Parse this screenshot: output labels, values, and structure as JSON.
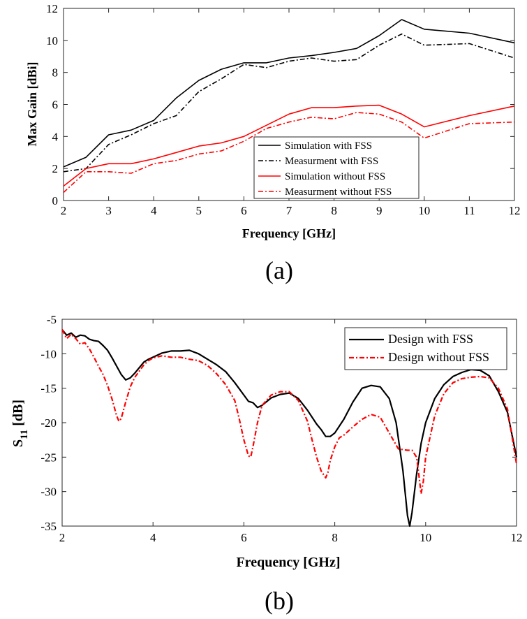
{
  "chart_data": [
    {
      "type": "line",
      "xlabel": "Frequency [GHz]",
      "ylabel": "Max Gain [dBi]",
      "caption": "(a)",
      "xlim": [
        2,
        12
      ],
      "ylim": [
        0,
        12
      ],
      "xticks": [
        "2",
        "3",
        "4",
        "5",
        "6",
        "7",
        "8",
        "9",
        "10",
        "11",
        "12"
      ],
      "yticks": [
        "0",
        "2",
        "4",
        "6",
        "8",
        "10",
        "12"
      ],
      "legend_position": "center-right",
      "series": [
        {
          "name": "Simulation with FSS",
          "color": "#000000",
          "dash": "solid",
          "x": [
            2,
            2.5,
            3,
            3.5,
            4,
            4.5,
            5,
            5.5,
            6,
            6.5,
            7,
            7.5,
            8,
            8.5,
            9,
            9.5,
            10,
            11,
            12
          ],
          "y": [
            2.1,
            2.7,
            4.1,
            4.4,
            5.0,
            6.4,
            7.5,
            8.2,
            8.6,
            8.6,
            8.9,
            9.05,
            9.25,
            9.5,
            10.3,
            11.3,
            10.7,
            10.45,
            9.85
          ]
        },
        {
          "name": "Measurment with FSS",
          "color": "#000000",
          "dash": "dashdot",
          "x": [
            2,
            2.5,
            3,
            3.5,
            4,
            4.5,
            5,
            5.5,
            6,
            6.5,
            7,
            7.5,
            8,
            8.5,
            9,
            9.5,
            10,
            11,
            12
          ],
          "y": [
            1.8,
            2.0,
            3.5,
            4.1,
            4.8,
            5.3,
            6.8,
            7.6,
            8.5,
            8.3,
            8.7,
            8.9,
            8.7,
            8.8,
            9.7,
            10.4,
            9.7,
            9.8,
            8.9
          ]
        },
        {
          "name": "Simulation without FSS",
          "color": "#ff0000",
          "dash": "solid",
          "x": [
            2,
            2.5,
            3,
            3.5,
            4,
            4.5,
            5,
            5.5,
            6,
            6.5,
            7,
            7.5,
            8,
            8.5,
            9,
            9.5,
            10,
            11,
            12
          ],
          "y": [
            0.9,
            2.0,
            2.3,
            2.3,
            2.6,
            3.0,
            3.4,
            3.6,
            4.0,
            4.7,
            5.4,
            5.8,
            5.8,
            5.9,
            5.95,
            5.4,
            4.6,
            5.3,
            5.9
          ]
        },
        {
          "name": "Measurment without FSS",
          "color": "#ff0000",
          "dash": "dashdot",
          "x": [
            2,
            2.5,
            3,
            3.5,
            4,
            4.5,
            5,
            5.5,
            6,
            6.5,
            7,
            7.5,
            8,
            8.5,
            9,
            9.5,
            10,
            11,
            12
          ],
          "y": [
            0.5,
            1.8,
            1.8,
            1.7,
            2.3,
            2.5,
            2.9,
            3.1,
            3.7,
            4.5,
            4.9,
            5.2,
            5.1,
            5.5,
            5.4,
            4.9,
            3.9,
            4.8,
            4.9
          ]
        }
      ]
    },
    {
      "type": "line",
      "xlabel": "Frequency [GHz]",
      "ylabel_main": "S",
      "ylabel_sub": "11",
      "ylabel_unit": " [dB]",
      "caption": "(b)",
      "xlim": [
        2,
        12
      ],
      "ylim": [
        -35,
        -5
      ],
      "xticks": [
        "2",
        "4",
        "6",
        "8",
        "10",
        "12"
      ],
      "yticks": [
        "-35",
        "-30",
        "-25",
        "-20",
        "-15",
        "-10",
        "-5"
      ],
      "legend_position": "top-right",
      "series": [
        {
          "name": "Design with FSS",
          "color": "#000000",
          "dash": "solid",
          "x": [
            2,
            2.1,
            2.2,
            2.3,
            2.4,
            2.5,
            2.6,
            2.7,
            2.8,
            2.9,
            3.0,
            3.1,
            3.2,
            3.3,
            3.4,
            3.5,
            3.6,
            3.7,
            3.8,
            3.9,
            4.0,
            4.2,
            4.4,
            4.6,
            4.8,
            5.0,
            5.2,
            5.4,
            5.6,
            5.8,
            6.0,
            6.1,
            6.2,
            6.3,
            6.4,
            6.6,
            6.8,
            7.0,
            7.2,
            7.4,
            7.6,
            7.7,
            7.8,
            7.9,
            8.0,
            8.2,
            8.4,
            8.6,
            8.8,
            9.0,
            9.2,
            9.35,
            9.5,
            9.6,
            9.65,
            9.7,
            9.8,
            9.9,
            10.0,
            10.2,
            10.4,
            10.6,
            10.8,
            11.0,
            11.2,
            11.4,
            11.6,
            11.8,
            12.0
          ],
          "y": [
            -6.5,
            -7.3,
            -7.0,
            -7.6,
            -7.3,
            -7.4,
            -7.9,
            -8.1,
            -8.2,
            -8.8,
            -9.5,
            -10.6,
            -11.8,
            -13.0,
            -13.8,
            -13.5,
            -12.8,
            -12.0,
            -11.2,
            -10.8,
            -10.5,
            -9.9,
            -9.6,
            -9.6,
            -9.5,
            -10.0,
            -10.8,
            -11.6,
            -12.6,
            -14.2,
            -16.0,
            -16.9,
            -17.1,
            -17.8,
            -17.5,
            -16.4,
            -15.9,
            -15.7,
            -16.5,
            -18.2,
            -20.2,
            -21.0,
            -22.0,
            -22.0,
            -21.5,
            -19.5,
            -17.0,
            -15.0,
            -14.6,
            -14.8,
            -16.5,
            -20.0,
            -27.0,
            -33.5,
            -35.0,
            -33.0,
            -27.5,
            -23.0,
            -20.0,
            -16.5,
            -14.5,
            -13.3,
            -12.7,
            -12.3,
            -12.4,
            -13.2,
            -15.5,
            -18.5,
            -25.0
          ]
        },
        {
          "name": "Design without FSS",
          "color": "#ff0000",
          "dash": "dashdot",
          "x": [
            2,
            2.1,
            2.2,
            2.3,
            2.4,
            2.5,
            2.6,
            2.7,
            2.8,
            2.9,
            3.0,
            3.1,
            3.2,
            3.25,
            3.3,
            3.4,
            3.5,
            3.6,
            3.7,
            3.8,
            3.9,
            4.0,
            4.2,
            4.4,
            4.6,
            4.8,
            5.0,
            5.2,
            5.4,
            5.6,
            5.8,
            5.9,
            6.0,
            6.1,
            6.15,
            6.2,
            6.3,
            6.4,
            6.6,
            6.8,
            7.0,
            7.2,
            7.4,
            7.5,
            7.6,
            7.7,
            7.8,
            7.85,
            7.9,
            8.0,
            8.1,
            8.2,
            8.4,
            8.6,
            8.8,
            9.0,
            9.2,
            9.4,
            9.6,
            9.7,
            9.8,
            9.85,
            9.9,
            9.95,
            10.0,
            10.2,
            10.4,
            10.6,
            10.8,
            11.0,
            11.2,
            11.4,
            11.6,
            11.8,
            12.0
          ],
          "y": [
            -6.5,
            -7.8,
            -7.2,
            -7.8,
            -8.6,
            -8.4,
            -9.3,
            -10.5,
            -11.8,
            -13.0,
            -14.6,
            -16.6,
            -19.0,
            -19.8,
            -19.4,
            -17.0,
            -14.8,
            -13.4,
            -12.5,
            -11.6,
            -11.0,
            -10.6,
            -10.3,
            -10.5,
            -10.5,
            -10.8,
            -11.0,
            -11.7,
            -12.9,
            -14.5,
            -16.8,
            -19.5,
            -22.5,
            -24.8,
            -25.0,
            -23.5,
            -20.0,
            -17.5,
            -16.0,
            -15.5,
            -15.5,
            -16.8,
            -19.8,
            -22.5,
            -25.0,
            -27.0,
            -28.0,
            -27.2,
            -25.5,
            -23.5,
            -22.2,
            -21.8,
            -20.6,
            -19.5,
            -18.8,
            -19.2,
            -21.5,
            -23.8,
            -24.0,
            -24.0,
            -25.0,
            -27.5,
            -30.3,
            -28.5,
            -25.0,
            -19.0,
            -15.8,
            -14.2,
            -13.6,
            -13.4,
            -13.3,
            -13.5,
            -15.0,
            -18.0,
            -26.0
          ]
        }
      ]
    }
  ]
}
